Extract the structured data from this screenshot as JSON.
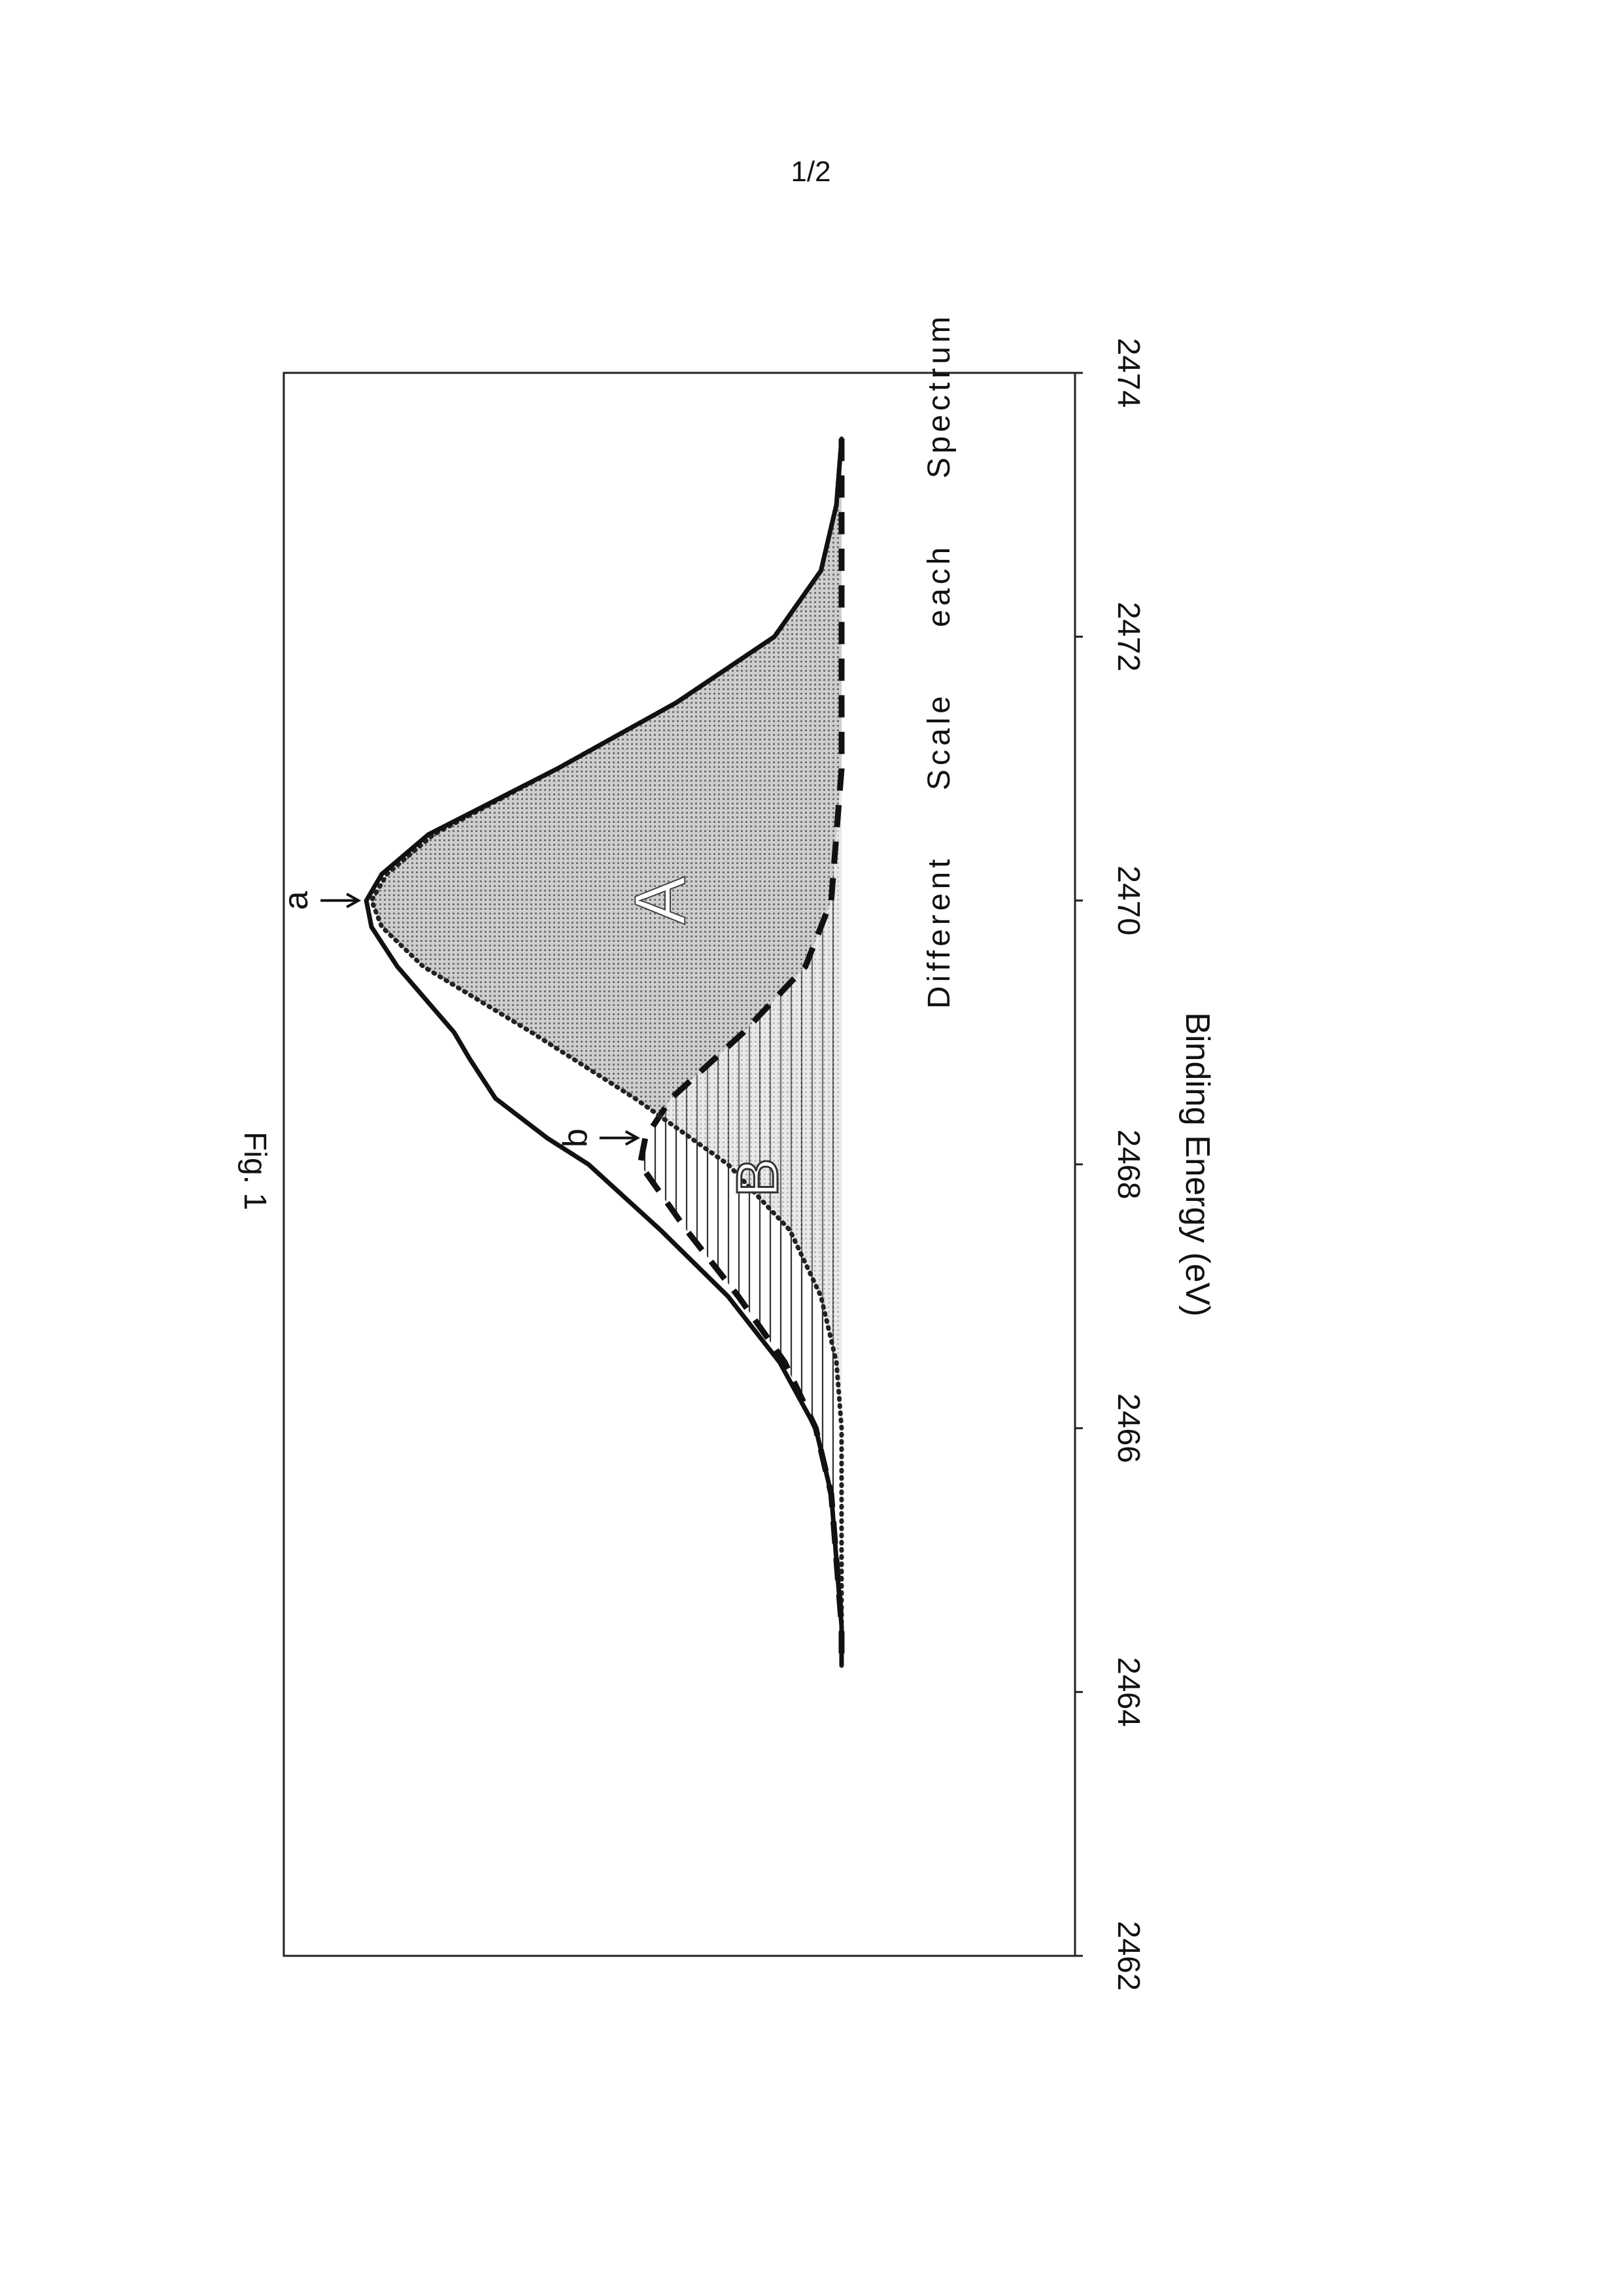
{
  "page": {
    "page_number": "1/2"
  },
  "chart_data": {
    "type": "line",
    "figure_label": "Fig. 1",
    "xlabel": "Binding Energy (eV)",
    "ylabel": "Different Scale each Spectrum",
    "xlim": [
      2474,
      2462
    ],
    "x_ticks": [
      "2474",
      "2472",
      "2470",
      "2468",
      "2466",
      "2464",
      "2462"
    ],
    "ylim": [
      0,
      1.0
    ],
    "grid": false,
    "legend": "none",
    "annotations": [
      "a",
      "b"
    ],
    "region_labels": [
      "A",
      "B"
    ],
    "series": [
      {
        "style": "solid",
        "x": [
          2473.5,
          2473.0,
          2472.5,
          2472.0,
          2471.5,
          2471.0,
          2470.5,
          2470.2,
          2470.0,
          2469.8,
          2469.5,
          2469.0,
          2468.8,
          2468.5,
          2468.2,
          2468.0,
          2467.5,
          2467.0,
          2466.5,
          2466.0,
          2465.5,
          2465.0,
          2464.5,
          2464.2
        ],
        "y": [
          0.0,
          0.01,
          0.04,
          0.13,
          0.32,
          0.55,
          0.8,
          0.89,
          0.92,
          0.91,
          0.86,
          0.75,
          0.72,
          0.67,
          0.57,
          0.49,
          0.35,
          0.22,
          0.12,
          0.05,
          0.02,
          0.01,
          0.0,
          0.0
        ]
      },
      {
        "style": "dotted",
        "x": [
          2473.5,
          2473.0,
          2472.5,
          2472.0,
          2471.5,
          2471.0,
          2470.5,
          2470.2,
          2470.0,
          2469.8,
          2469.5,
          2469.0,
          2468.5,
          2468.0,
          2467.5,
          2467.0,
          2466.5,
          2466.0,
          2465.5,
          2465.0,
          2464.5,
          2464.2
        ],
        "y": [
          0.0,
          0.01,
          0.04,
          0.13,
          0.32,
          0.55,
          0.79,
          0.88,
          0.91,
          0.89,
          0.81,
          0.6,
          0.4,
          0.22,
          0.1,
          0.04,
          0.01,
          0.0,
          0.0,
          0.0,
          0.0,
          0.0
        ]
      },
      {
        "style": "dashed",
        "x": [
          2473.5,
          2472.0,
          2471.0,
          2470.0,
          2469.5,
          2469.0,
          2468.5,
          2468.2,
          2468.0,
          2467.5,
          2467.0,
          2466.5,
          2466.0,
          2465.5,
          2465.0,
          2464.5,
          2464.2
        ],
        "y": [
          0.0,
          0.0,
          0.0,
          0.02,
          0.07,
          0.19,
          0.33,
          0.38,
          0.39,
          0.3,
          0.2,
          0.11,
          0.05,
          0.02,
          0.01,
          0.0,
          0.0
        ]
      }
    ]
  }
}
